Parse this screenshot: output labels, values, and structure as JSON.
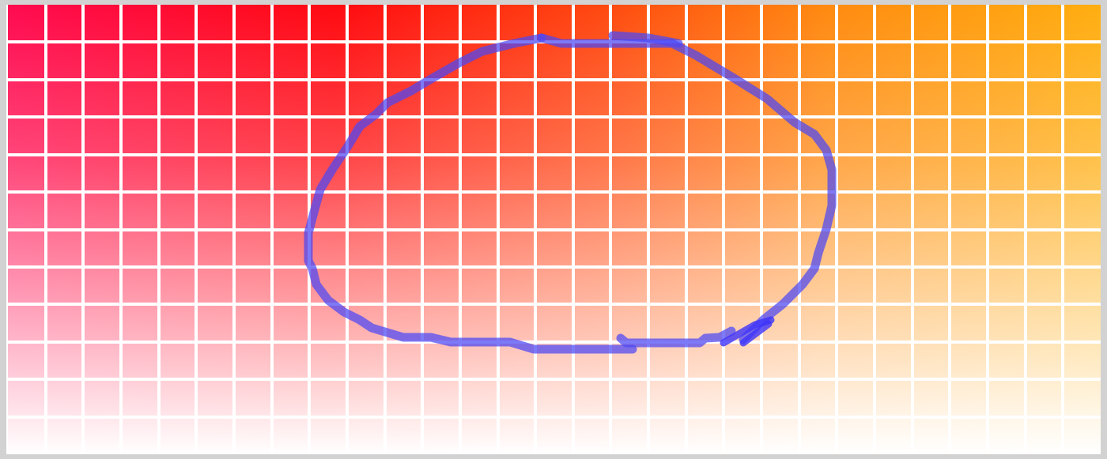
{
  "canvas": {
    "grid_columns": 29,
    "grid_rows": 12,
    "gradient_colors": {
      "top_left": "#ff0a50",
      "top_middle": "#ff0a10",
      "top_right": "#ffae10",
      "bottom": "#ffffff"
    },
    "stroke_color": "#4b46f5",
    "frame_color": "#d2d2d2"
  }
}
